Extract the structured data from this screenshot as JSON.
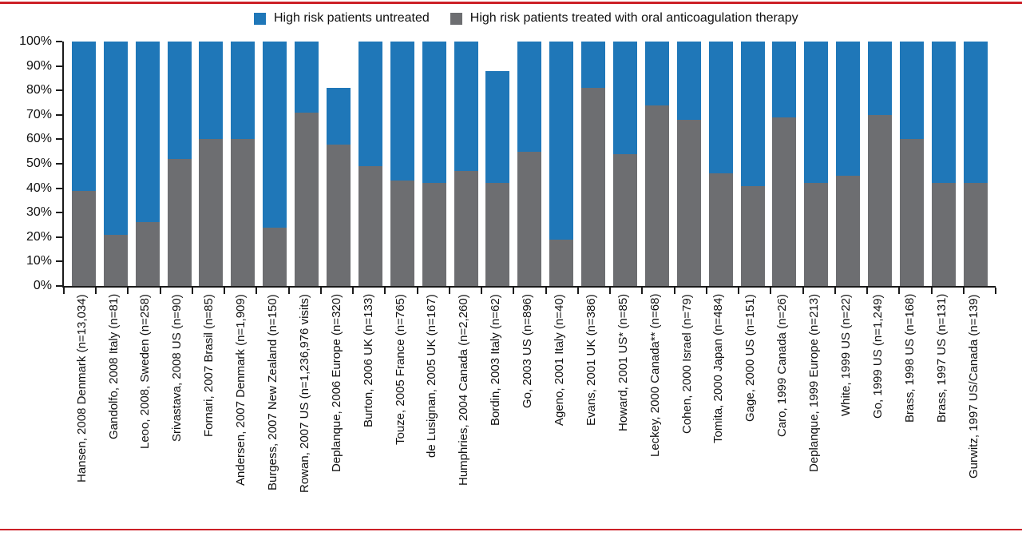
{
  "page": {
    "background": "#ffffff",
    "top_rule_color": "#cc2027",
    "bottom_rule_color": "#cc2027",
    "axis_color": "#1a1a1a",
    "text_color": "#111111"
  },
  "legend": {
    "position": "top-center",
    "items": [
      {
        "key": "untreated",
        "label": "High risk patients untreated",
        "color": "#1f77b8"
      },
      {
        "key": "treated",
        "label": "High risk patients treated with oral anticoagulation therapy",
        "color": "#6d6e71"
      }
    ]
  },
  "chart_data": {
    "type": "bar",
    "stacked": true,
    "orientation": "vertical",
    "title": "",
    "xlabel": "",
    "ylabel": "",
    "ylim": [
      0,
      100
    ],
    "grid": false,
    "ytick_labels": [
      "0%",
      "10%",
      "20%",
      "30%",
      "40%",
      "50%",
      "60%",
      "70%",
      "80%",
      "90%",
      "100%"
    ],
    "ytick_values": [
      0,
      10,
      20,
      30,
      40,
      50,
      60,
      70,
      80,
      90,
      100
    ],
    "categories": [
      "Hansen, 2008 Denmark (n=13,034)",
      "Gandolfo, 2008 Italy (n=81)",
      "Leoo, 2008, Sweden (n=258)",
      "Srivastava, 2008 US (n=90)",
      "Fornari, 2007 Brasil (n=85)",
      "Andersen, 2007 Denmark (n=1,909)",
      "Burgess, 2007 New Zealand (n=150)",
      "Rowan, 2007 US (n=1,236,976 visits)",
      "Deplanque, 2006 Europe (n=320)",
      "Burton, 2006 UK (n=133)",
      "Touze, 2005 France (n=765)",
      "de Lusignan, 2005 UK (n=167)",
      "Humphries, 2004 Canada (n=2,260)",
      "Bordin, 2003 Italy (n=62)",
      "Go, 2003 US (n=896)",
      "Ageno, 2001 Italy (n=40)",
      "Evans, 2001 UK (n=386)",
      "Howard, 2001 US* (n=85)",
      "Leckey, 2000 Canada** (n=68)",
      "Cohen, 2000 Israel (n=79)",
      "Tomita, 2000 Japan (n=484)",
      "Gage, 2000 US (n=151)",
      "Caro, 1999 Canada (n=26)",
      "Deplanque, 1999 Europe (n=213)",
      "White, 1999 US (n=22)",
      "Go, 1999 US (n=1,249)",
      "Brass, 1998 US (n=168)",
      "Brass, 1997 US (n=131)",
      "Gurwitz, 1997 US/Canada (n=139)"
    ],
    "series": [
      {
        "name": "High risk patients treated with oral anticoagulation therapy",
        "color": "#6d6e71",
        "stack_position": "bottom",
        "values": [
          39,
          21,
          26,
          52,
          60,
          60,
          24,
          71,
          58,
          49,
          43,
          42,
          47,
          42,
          55,
          19,
          81,
          54,
          74,
          68,
          46,
          41,
          69,
          42,
          45,
          70,
          60,
          42,
          42
        ]
      },
      {
        "name": "High risk patients untreated",
        "color": "#1f77b8",
        "stack_position": "top",
        "values": [
          61,
          79,
          74,
          48,
          40,
          40,
          76,
          29,
          23,
          51,
          57,
          58,
          53,
          46,
          45,
          81,
          19,
          46,
          26,
          32,
          54,
          59,
          31,
          58,
          55,
          30,
          40,
          58,
          58
        ]
      }
    ],
    "bar_totals": [
      100,
      100,
      100,
      100,
      100,
      100,
      100,
      100,
      81,
      100,
      100,
      100,
      100,
      88,
      100,
      100,
      100,
      100,
      100,
      100,
      100,
      100,
      100,
      100,
      100,
      100,
      100,
      100,
      100
    ]
  }
}
